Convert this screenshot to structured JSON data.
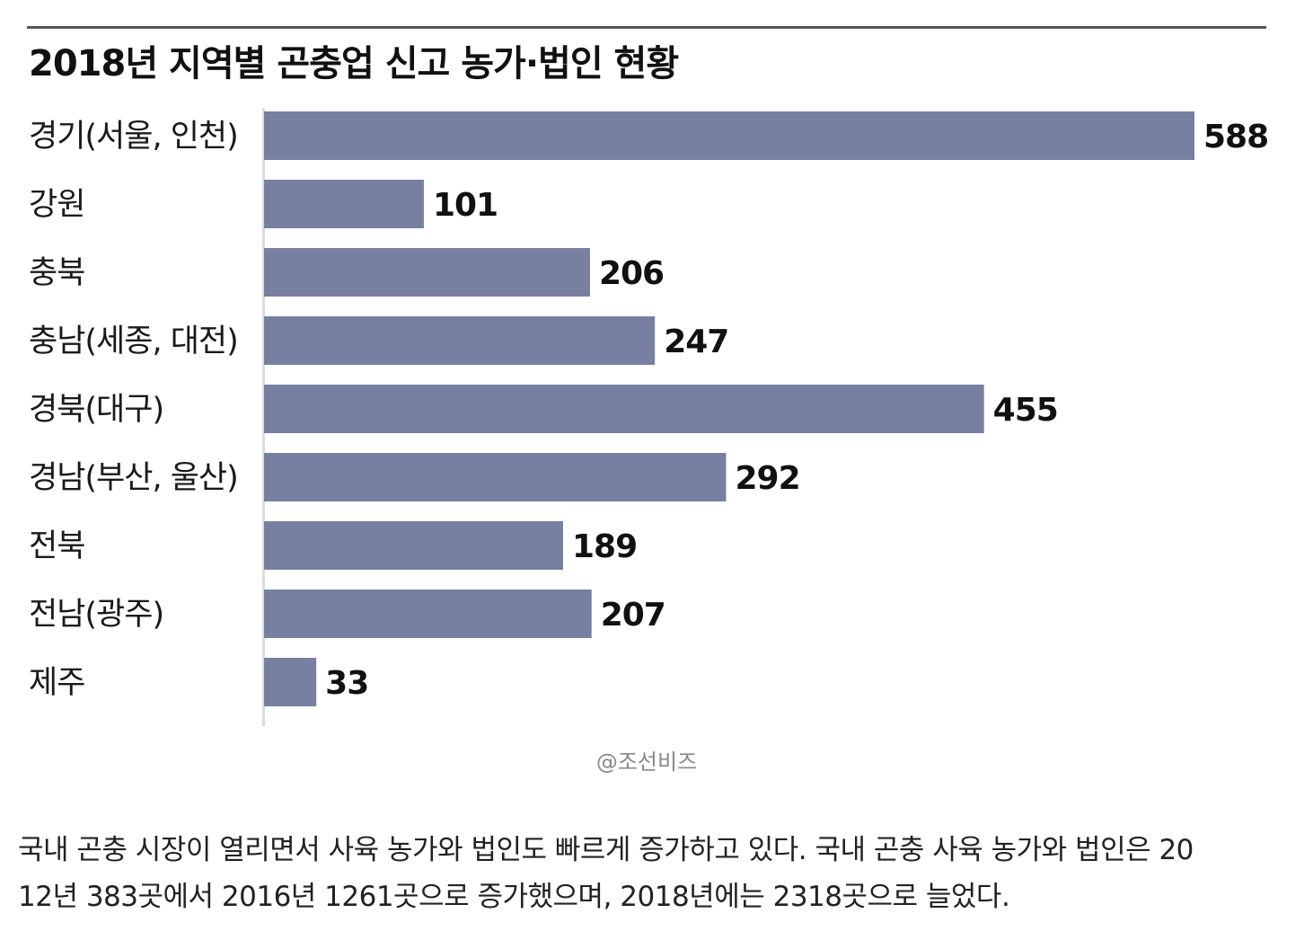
{
  "chart_data": {
    "type": "bar",
    "orientation": "horizontal",
    "title": "2018년 지역별 곤충업 신고 농가·법인 현황",
    "categories": [
      "경기(서울, 인천)",
      "강원",
      "충북",
      "충남(세종, 대전)",
      "경북(대구)",
      "경남(부산, 울산)",
      "전북",
      "전남(광주)",
      "제주"
    ],
    "values": [
      588,
      101,
      206,
      247,
      455,
      292,
      189,
      207,
      33
    ],
    "value_labels": [
      "588",
      "101",
      "206",
      "247",
      "455",
      "292",
      "189",
      "207",
      "33"
    ],
    "xlim": [
      0,
      588
    ],
    "grid": false,
    "legend": "none",
    "bar_color": "#7780a0"
  },
  "credit": "@조선비즈",
  "article": {
    "line1": "국내 곤충 시장이 열리면서 사육 농가와 법인도 빠르게 증가하고 있다. 국내 곤충 사육 농가와 법인은 20",
    "line2": "12년 383곳에서 2016년 1261곳으로 증가했으며, 2018년에는 2318곳으로 늘었다."
  }
}
